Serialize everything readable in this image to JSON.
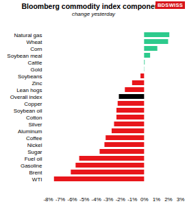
{
  "chart_data": {
    "type": "bar",
    "orientation": "horizontal",
    "title": "Bloomberg commodity index components",
    "subtitle": "change yesterday",
    "annotations": [
      "BDSWISS"
    ],
    "categories": [
      "Natural gas",
      "Wheat",
      "Corn",
      "Soybean meal",
      "Cattle",
      "Gold",
      "Soybeans",
      "Zinc",
      "Lean hogs",
      "Overall index",
      "Copper",
      "Soybean oil",
      "Cotton",
      "Silver",
      "Aluminum",
      "Coffee",
      "Nickel",
      "Sugar",
      "Fuel oil",
      "Gasoline",
      "Brent",
      "WTI"
    ],
    "values": [
      2.1,
      2.0,
      1.1,
      0.5,
      0.05,
      0.02,
      -0.3,
      -1.0,
      -1.6,
      -2.1,
      -2.2,
      -2.3,
      -2.3,
      -2.5,
      -2.7,
      -3.2,
      -3.3,
      -3.7,
      -5.4,
      -5.7,
      -6.1,
      -7.5
    ],
    "colors": [
      "#2dca8c",
      "#2dca8c",
      "#2dca8c",
      "#2dca8c",
      "#2dca8c",
      "#2dca8c",
      "#e8161b",
      "#e8161b",
      "#e8161b",
      "#000000",
      "#e8161b",
      "#e8161b",
      "#e8161b",
      "#e8161b",
      "#e8161b",
      "#e8161b",
      "#e8161b",
      "#e8161b",
      "#e8161b",
      "#e8161b",
      "#e8161b",
      "#e8161b"
    ],
    "xlim": [
      -8,
      3
    ],
    "xticks": [
      {
        "value": -8,
        "label": "-8%"
      },
      {
        "value": -7,
        "label": "-7%"
      },
      {
        "value": -6,
        "label": "-6%"
      },
      {
        "value": -5,
        "label": "-5%"
      },
      {
        "value": -4,
        "label": "-4%"
      },
      {
        "value": -3,
        "label": "-3%"
      },
      {
        "value": -2,
        "label": "-2%"
      },
      {
        "value": -1,
        "label": "-1%"
      },
      {
        "value": 0,
        "label": "0%"
      },
      {
        "value": 1,
        "label": "1%"
      },
      {
        "value": 2,
        "label": "2%"
      },
      {
        "value": 3,
        "label": "3%"
      }
    ],
    "grid": false
  }
}
